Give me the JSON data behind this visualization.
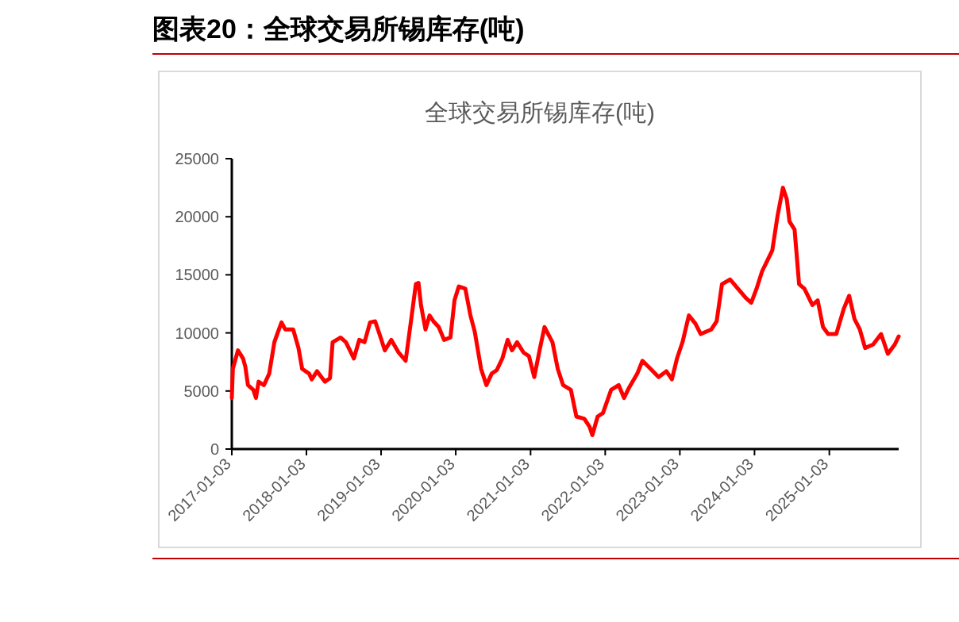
{
  "chart_data": {
    "type": "line",
    "title": "图表20：全球交易所锡库存(吨)",
    "subtitle": "全球交易所锡库存(吨)",
    "x": [
      "2017-01-03",
      "2017-01-08",
      "2017-02-02",
      "2017-02-27",
      "2017-03-10",
      "2017-03-23",
      "2017-04-18",
      "2017-05-01",
      "2017-05-14",
      "2017-06-09",
      "2017-07-05",
      "2017-07-30",
      "2017-08-13",
      "2017-09-03",
      "2017-09-21",
      "2017-10-30",
      "2017-11-25",
      "2017-12-13",
      "2018-01-16",
      "2018-01-29",
      "2018-02-24",
      "2018-04-03",
      "2018-04-28",
      "2018-05-11",
      "2018-06-19",
      "2018-07-15",
      "2018-08-23",
      "2018-09-18",
      "2018-10-14",
      "2018-11-10",
      "2018-12-05",
      "2019-01-01",
      "2019-01-21",
      "2019-02-22",
      "2019-03-30",
      "2019-05-03",
      "2019-05-29",
      "2019-06-22",
      "2019-07-05",
      "2019-07-17",
      "2019-08-08",
      "2019-08-28",
      "2019-09-16",
      "2019-10-12",
      "2019-11-07",
      "2019-12-08",
      "2019-12-28",
      "2020-01-18",
      "2020-02-19",
      "2020-03-15",
      "2020-04-05",
      "2020-05-06",
      "2020-06-01",
      "2020-06-27",
      "2020-07-22",
      "2020-08-18",
      "2020-09-13",
      "2020-10-04",
      "2020-10-29",
      "2020-11-30",
      "2020-12-26",
      "2021-01-21",
      "2021-02-16",
      "2021-03-12",
      "2021-04-20",
      "2021-05-16",
      "2021-06-11",
      "2021-07-19",
      "2021-08-15",
      "2021-09-23",
      "2021-10-19",
      "2021-11-01",
      "2021-11-27",
      "2021-12-23",
      "2022-02-01",
      "2022-03-10",
      "2022-04-05",
      "2022-04-30",
      "2022-06-09",
      "2022-07-04",
      "2022-08-13",
      "2022-09-21",
      "2022-10-29",
      "2022-11-25",
      "2022-12-20",
      "2023-01-16",
      "2023-02-16",
      "2023-03-20",
      "2023-04-15",
      "2023-06-06",
      "2023-07-02",
      "2023-07-28",
      "2023-09-06",
      "2023-10-14",
      "2023-11-22",
      "2023-12-18",
      "2024-01-13",
      "2024-02-09",
      "2024-03-05",
      "2024-03-30",
      "2024-04-25",
      "2024-05-21",
      "2024-06-09",
      "2024-06-22",
      "2024-07-17",
      "2024-08-08",
      "2024-09-03",
      "2024-10-12",
      "2024-11-07",
      "2024-12-03",
      "2024-12-28",
      "2025-02-06",
      "2025-03-15",
      "2025-04-10",
      "2025-05-06",
      "2025-06-01",
      "2025-06-27",
      "2025-08-05",
      "2025-09-13",
      "2025-10-16",
      "2025-11-19",
      "2025-12-08"
    ],
    "series": [
      {
        "color": "#ff0000",
        "values": [
          4400,
          6900,
          8500,
          7800,
          7100,
          5500,
          5100,
          4400,
          5800,
          5500,
          6500,
          9200,
          9900,
          10900,
          10300,
          10300,
          8700,
          6900,
          6500,
          6000,
          6700,
          5800,
          6100,
          9200,
          9600,
          9200,
          7800,
          9400,
          9200,
          10900,
          11000,
          9600,
          8500,
          9400,
          8300,
          7600,
          11000,
          14200,
          14300,
          12400,
          10300,
          11500,
          11000,
          10500,
          9400,
          9600,
          12800,
          14000,
          13800,
          11500,
          10100,
          6900,
          5500,
          6500,
          6800,
          7800,
          9400,
          8500,
          9200,
          8300,
          8000,
          6200,
          8500,
          10500,
          9200,
          6900,
          5500,
          5100,
          2800,
          2600,
          1900,
          1200,
          2800,
          3100,
          5100,
          5500,
          4400,
          5300,
          6500,
          7600,
          6900,
          6200,
          6700,
          6000,
          7800,
          9200,
          11500,
          10800,
          9900,
          10300,
          11000,
          14200,
          14600,
          13800,
          13000,
          12600,
          13800,
          15300,
          16200,
          17100,
          20100,
          22500,
          21500,
          19600,
          18900,
          14200,
          13800,
          12400,
          12800,
          10500,
          9900,
          9900,
          12100,
          13200,
          11200,
          10300,
          8700,
          9000,
          9900,
          8200,
          9000,
          9700
        ]
      }
    ],
    "xlim": [
      "2017-01-03",
      "2025-12-08"
    ],
    "xticks": [
      {
        "value": "2017-01-03",
        "label": "2017-01-03"
      },
      {
        "value": "2018-01-03",
        "label": "2018-01-03"
      },
      {
        "value": "2019-01-03",
        "label": "2019-01-03"
      },
      {
        "value": "2020-01-03",
        "label": "2020-01-03"
      },
      {
        "value": "2021-01-03",
        "label": "2021-01-03"
      },
      {
        "value": "2022-01-03",
        "label": "2022-01-03"
      },
      {
        "value": "2023-01-03",
        "label": "2023-01-03"
      },
      {
        "value": "2024-01-03",
        "label": "2024-01-03"
      },
      {
        "value": "2025-01-03",
        "label": "2025-01-03"
      }
    ],
    "ylim": [
      0,
      25000
    ],
    "yticks": [
      0,
      5000,
      10000,
      15000,
      20000,
      25000
    ],
    "grid": false,
    "marker": "none",
    "line_style": "solid"
  }
}
